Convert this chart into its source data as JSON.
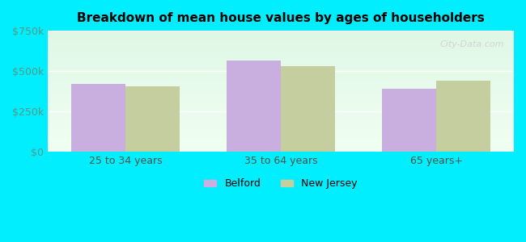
{
  "title": "Breakdown of mean house values by ages of householders",
  "categories": [
    "25 to 34 years",
    "35 to 64 years",
    "65 years+"
  ],
  "belford_values": [
    420000,
    565000,
    390000
  ],
  "nj_values": [
    405000,
    530000,
    440000
  ],
  "ylim": [
    0,
    750000
  ],
  "yticks": [
    0,
    250000,
    500000,
    750000
  ],
  "ytick_labels": [
    "$0",
    "$250k",
    "$500k",
    "$750k"
  ],
  "bar_color_belford": "#c9aee0",
  "bar_color_nj": "#c5ce9e",
  "background_color": "#00eeff",
  "legend_belford": "Belford",
  "legend_nj": "New Jersey",
  "bar_width": 0.35,
  "watermark": "City-Data.com"
}
